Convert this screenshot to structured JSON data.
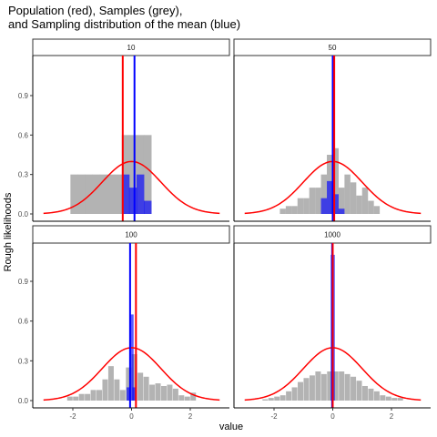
{
  "chart_data": {
    "type": "bar",
    "title_lines": [
      "Population (red), Samples (grey),",
      "and Sampling distribution of the mean (blue)"
    ],
    "xlabel": "value",
    "ylabel": "Rough likelihoods",
    "xlim": [
      -3.2,
      3.3
    ],
    "ylim": [
      0,
      1.18
    ],
    "x_ticks": [
      -2,
      0,
      2
    ],
    "y_ticks": [
      0.0,
      0.3,
      0.6,
      0.9
    ],
    "grid": false,
    "colors": {
      "population": "#ff0000",
      "samples": "#b3b3b3",
      "sampling": "#0000ff"
    },
    "population_curve": {
      "distribution": "normal",
      "mean": 0,
      "sd": 1
    },
    "panels": [
      {
        "label": "10",
        "sample_bins": [
          [
            -1.95,
            0.3
          ],
          [
            -1.7,
            0.3
          ],
          [
            -1.45,
            0.3
          ],
          [
            -1.2,
            0.3
          ],
          [
            -0.95,
            0.3
          ],
          [
            -0.7,
            0.3
          ],
          [
            -0.45,
            0.3
          ],
          [
            -0.2,
            0.6
          ],
          [
            0.05,
            0.6
          ],
          [
            0.3,
            0.6
          ],
          [
            0.55,
            0.6
          ]
        ],
        "sampling_bins": [
          [
            -0.2,
            0.3
          ],
          [
            0.05,
            0.2
          ],
          [
            0.3,
            0.3
          ],
          [
            0.55,
            0.1
          ]
        ],
        "population_mean": -0.3,
        "sample_mean": 0.1
      },
      {
        "label": "50",
        "sample_bins": [
          [
            -1.7,
            0.04
          ],
          [
            -1.5,
            0.06
          ],
          [
            -1.3,
            0.06
          ],
          [
            -1.1,
            0.12
          ],
          [
            -0.9,
            0.12
          ],
          [
            -0.7,
            0.2
          ],
          [
            -0.5,
            0.2
          ],
          [
            -0.3,
            0.3
          ],
          [
            -0.1,
            0.45
          ],
          [
            0.1,
            0.5
          ],
          [
            0.3,
            0.2
          ],
          [
            0.5,
            0.3
          ],
          [
            0.7,
            0.24
          ],
          [
            0.9,
            0.14
          ],
          [
            1.1,
            0.2
          ],
          [
            1.3,
            0.1
          ],
          [
            1.5,
            0.06
          ]
        ],
        "sampling_bins": [
          [
            -0.3,
            0.12
          ],
          [
            -0.1,
            0.25
          ],
          [
            0.1,
            0.15
          ],
          [
            0.3,
            0.04
          ]
        ],
        "population_mean": 0.05,
        "sample_mean": 0.0
      },
      {
        "label": "100",
        "sample_bins": [
          [
            -2.1,
            0.03
          ],
          [
            -1.9,
            0.03
          ],
          [
            -1.7,
            0.05
          ],
          [
            -1.5,
            0.05
          ],
          [
            -1.3,
            0.08
          ],
          [
            -1.1,
            0.08
          ],
          [
            -0.9,
            0.16
          ],
          [
            -0.7,
            0.26
          ],
          [
            -0.5,
            0.16
          ],
          [
            -0.3,
            0.08
          ],
          [
            -0.1,
            0.25
          ],
          [
            0.1,
            0.35
          ],
          [
            0.3,
            0.21
          ],
          [
            0.5,
            0.18
          ],
          [
            0.7,
            0.12
          ],
          [
            0.9,
            0.13
          ],
          [
            1.1,
            0.11
          ],
          [
            1.3,
            0.12
          ],
          [
            1.5,
            0.09
          ],
          [
            1.7,
            0.04
          ],
          [
            1.9,
            0.03
          ],
          [
            2.1,
            0.06
          ]
        ],
        "sampling_bins": [
          [
            -0.1,
            0.1
          ],
          [
            0.0,
            0.65
          ],
          [
            0.1,
            0.1
          ]
        ],
        "population_mean": 0.15,
        "sample_mean": -0.05
      },
      {
        "label": "1000",
        "sample_bins": [
          [
            -2.3,
            0.01
          ],
          [
            -2.1,
            0.02
          ],
          [
            -1.9,
            0.03
          ],
          [
            -1.7,
            0.04
          ],
          [
            -1.5,
            0.07
          ],
          [
            -1.3,
            0.1
          ],
          [
            -1.1,
            0.14
          ],
          [
            -0.9,
            0.17
          ],
          [
            -0.7,
            0.19
          ],
          [
            -0.5,
            0.22
          ],
          [
            -0.3,
            0.2
          ],
          [
            -0.1,
            0.22
          ],
          [
            0.1,
            0.22
          ],
          [
            0.3,
            0.22
          ],
          [
            0.5,
            0.2
          ],
          [
            0.7,
            0.18
          ],
          [
            0.9,
            0.15
          ],
          [
            1.1,
            0.11
          ],
          [
            1.3,
            0.09
          ],
          [
            1.5,
            0.07
          ],
          [
            1.7,
            0.04
          ],
          [
            1.9,
            0.03
          ],
          [
            2.1,
            0.02
          ],
          [
            2.3,
            0.02
          ]
        ],
        "sampling_bins": [
          [
            0.0,
            1.1
          ]
        ],
        "population_mean": 0.0,
        "sample_mean": -0.02
      }
    ]
  }
}
